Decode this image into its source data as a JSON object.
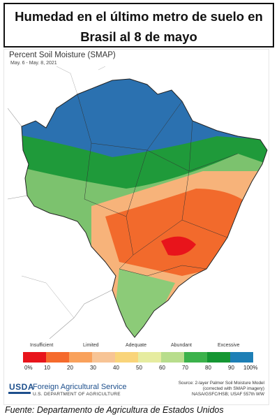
{
  "header": {
    "title_line1": "Humedad en el último metro de suelo  en",
    "title_line2": "Brasil al 8 de mayo"
  },
  "map": {
    "title": "Percent Soil Moisture (SMAP)",
    "date_range": "May. 6 - May. 8, 2021"
  },
  "legend": {
    "categories": [
      "Insufficient",
      "Limited",
      "Adequate",
      "Abundant",
      "Excessive"
    ],
    "tick_labels": [
      "0%",
      "10",
      "20",
      "30",
      "40",
      "50",
      "60",
      "70",
      "80",
      "90",
      "100%"
    ],
    "colors": [
      "#e8141b",
      "#f56a2c",
      "#f9a15b",
      "#f7c495",
      "#f9d47a",
      "#e6eca0",
      "#b8dd8c",
      "#3bb24b",
      "#149632",
      "#1e7fb6"
    ]
  },
  "agency": {
    "logo_text": "USDA",
    "name": "Foreign Agricultural Service",
    "department": "U.S. DEPARTMENT OF AGRICULTURE"
  },
  "source_note": {
    "line1": "Source: 2-layer Palmer Soil Moisture Model",
    "line2": "(corrected with SMAP imagery)",
    "line3": "NASA/GSFC/HSB; USAF 557th WW"
  },
  "footer": {
    "caption": "Fuente: Departamento de Agricultura de Estados Unidos"
  }
}
